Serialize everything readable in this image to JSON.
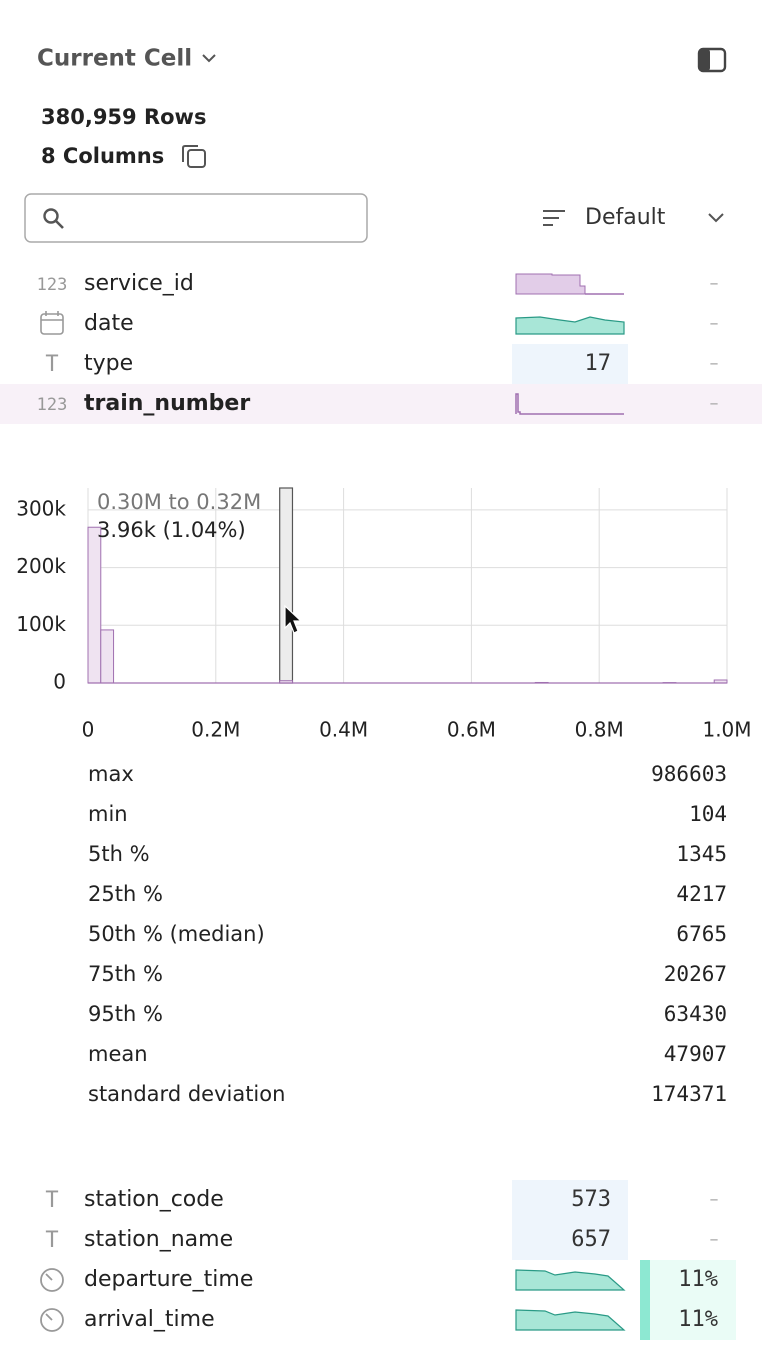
{
  "header": {
    "title": "Current Cell",
    "rows": "380,959 Rows",
    "columns": "8 Columns"
  },
  "sort": {
    "label": "Default"
  },
  "columns_top": [
    {
      "name": "service_id",
      "kind": "number",
      "icon_text": "123",
      "summary": "hist",
      "missing": "–"
    },
    {
      "name": "date",
      "kind": "date",
      "summary": "area",
      "missing": "–"
    },
    {
      "name": "type",
      "kind": "text",
      "icon_text": "T",
      "summary": "count",
      "count": "17",
      "missing": "–"
    },
    {
      "name": "train_number",
      "kind": "number",
      "icon_text": "123",
      "summary": "spike",
      "missing": "–",
      "selected": true
    }
  ],
  "histogram": {
    "bins": [
      0,
      20000,
      40000,
      60000,
      80000,
      100000,
      120000,
      140000,
      160000,
      180000,
      200000,
      220000,
      240000,
      260000,
      280000,
      300000,
      320000,
      340000,
      360000,
      380000,
      400000,
      420000,
      440000,
      460000,
      480000,
      500000,
      520000,
      540000,
      560000,
      580000,
      600000,
      620000,
      640000,
      660000,
      680000,
      700000,
      720000,
      740000,
      760000,
      780000,
      800000,
      820000,
      840000,
      860000,
      880000,
      900000,
      920000,
      940000,
      960000,
      980000,
      1000000
    ],
    "counts": [
      270000,
      92000,
      0,
      0,
      0,
      0,
      0,
      0,
      0,
      0,
      0,
      0,
      0,
      0,
      0,
      3960,
      0,
      0,
      0,
      0,
      0,
      0,
      0,
      0,
      0,
      0,
      0,
      0,
      0,
      0,
      0,
      0,
      0,
      0,
      0,
      900,
      0,
      0,
      0,
      0,
      0,
      0,
      0,
      0,
      0,
      700,
      0,
      0,
      0,
      5200
    ],
    "xlim": [
      0,
      1000000
    ],
    "xticks": [
      0,
      {
        "value": 200000,
        "label": "0.2M"
      },
      {
        "value": 400000,
        "label": "0.4M"
      },
      {
        "value": 600000,
        "label": "0.6M"
      },
      {
        "value": 800000,
        "label": "0.8M"
      },
      {
        "value": 1000000,
        "label": "1.0M"
      }
    ],
    "ylim": [
      0,
      338000
    ],
    "yticks": [
      0,
      {
        "value": 100000,
        "label": "100k"
      },
      {
        "value": 200000,
        "label": "200k"
      },
      {
        "value": 300000,
        "label": "300k"
      }
    ],
    "highlight": 15,
    "tooltip_range": "0.30M to 0.32M",
    "tooltip_count": "3.96k (1.04%)"
  },
  "stats": [
    {
      "label": "max",
      "value": 986603
    },
    {
      "label": "min",
      "value": 104
    },
    {
      "label": "5th %",
      "value": 1345
    },
    {
      "label": "25th %",
      "value": 4217
    },
    {
      "label": "50th % (median)",
      "value": 6765
    },
    {
      "label": "75th %",
      "value": 20267
    },
    {
      "label": "95th %",
      "value": 63430
    },
    {
      "label": "mean",
      "value": 47907
    },
    {
      "label": "standard deviation",
      "value": 174371
    }
  ],
  "columns_bottom": [
    {
      "name": "station_code",
      "kind": "text",
      "icon_text": "T",
      "summary": "count",
      "count": "573",
      "missing": "–"
    },
    {
      "name": "station_name",
      "kind": "text",
      "icon_text": "T",
      "summary": "count",
      "count": "657",
      "missing": "–"
    },
    {
      "name": "departure_time",
      "kind": "time",
      "summary": "area2",
      "null_pct": "11%"
    },
    {
      "name": "arrival_time",
      "kind": "time",
      "summary": "area2",
      "null_pct": "11%"
    }
  ]
}
